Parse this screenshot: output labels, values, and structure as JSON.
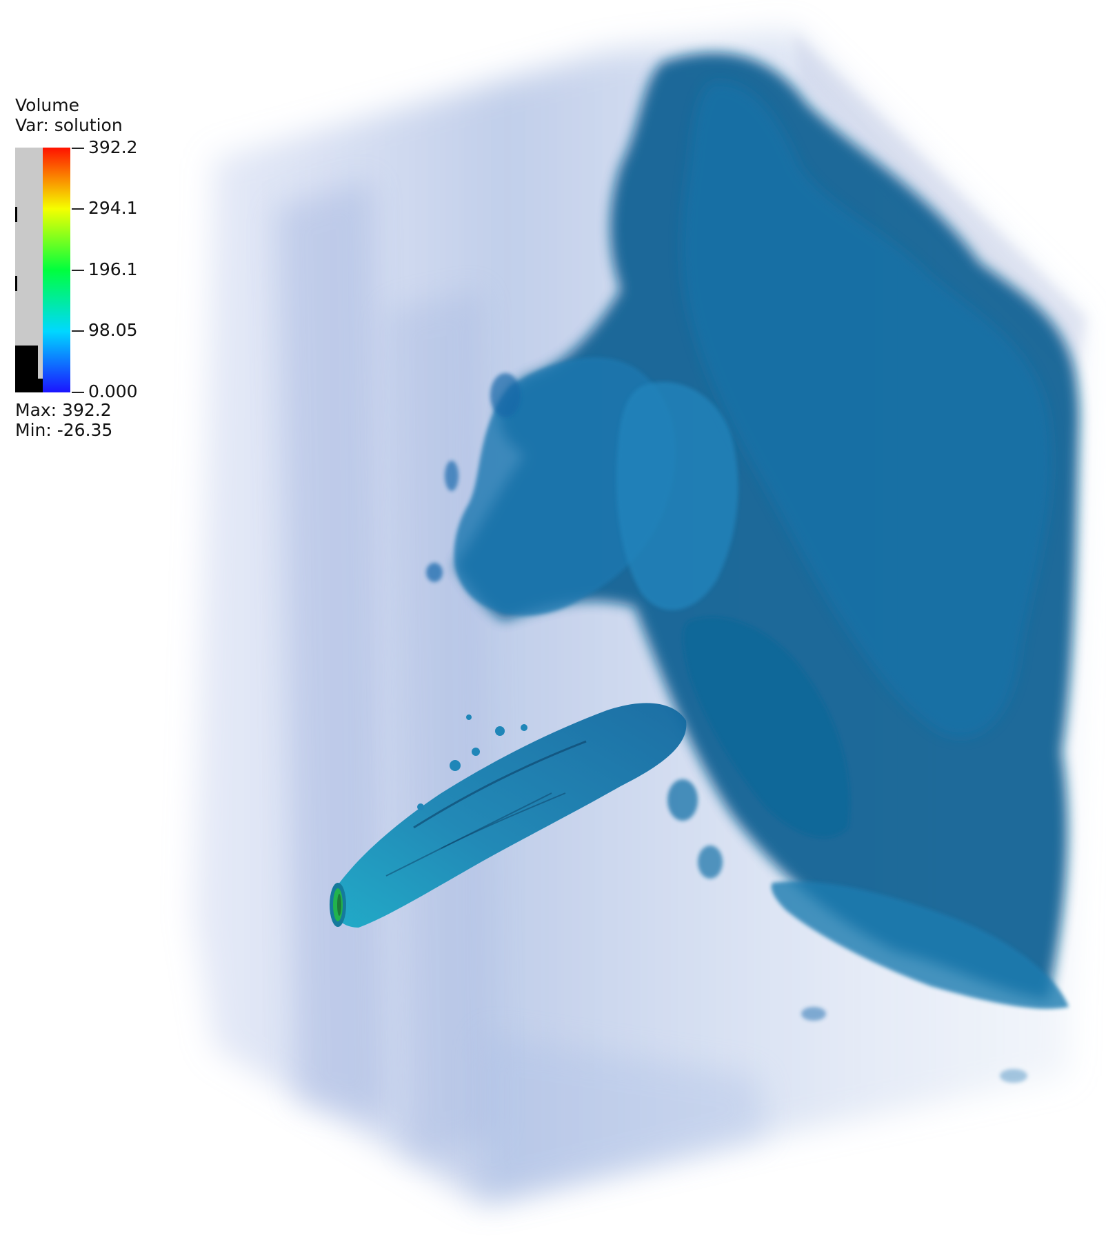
{
  "legend": {
    "title": "Volume",
    "variable": "Var: solution",
    "ticks": [
      "392.2",
      "294.1",
      "196.1",
      "98.05",
      "0.000"
    ],
    "max_label": "Max:  392.2",
    "min_label": "Min: -26.35"
  },
  "colors": {
    "colormap": [
      "#1b14ff",
      "#00d8ff",
      "#00ff3e",
      "#f5ff00",
      "#ff1200"
    ],
    "plume": "#0f6a9c",
    "haze": "#8ea6d8",
    "background": "#ffffff"
  }
}
